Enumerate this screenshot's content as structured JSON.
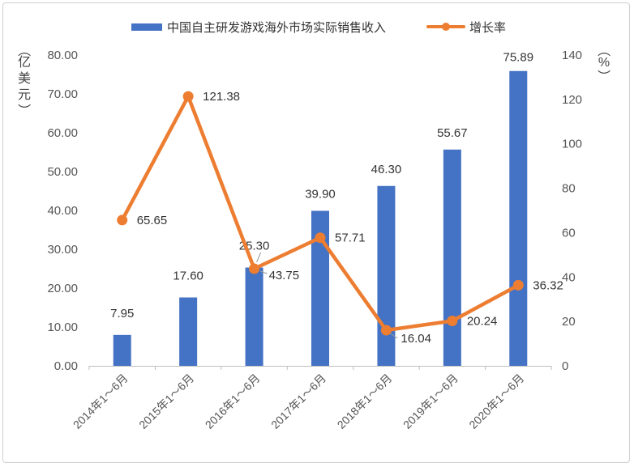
{
  "chart_data": {
    "type": "bar+line",
    "categories": [
      "2014年1～6月",
      "2015年1～6月",
      "2016年1～6月",
      "2017年1～6月",
      "2018年1～6月",
      "2019年1～6月",
      "2020年1～6月"
    ],
    "series": [
      {
        "name": "中国自主研发游戏海外市场实际销售收入",
        "type": "bar",
        "axis": "left",
        "values": [
          7.95,
          17.6,
          25.3,
          39.9,
          46.3,
          55.67,
          75.89
        ],
        "labels": [
          "7.95",
          "17.60",
          "25.30",
          "39.90",
          "46.30",
          "55.67",
          "75.89"
        ],
        "color": "#4472c4"
      },
      {
        "name": "增长率",
        "type": "line",
        "axis": "right",
        "values": [
          65.65,
          121.38,
          43.75,
          57.71,
          16.04,
          20.24,
          36.32
        ],
        "labels": [
          "65.65",
          "121.38",
          "43.75",
          "57.71",
          "16.04",
          "20.24",
          "36.32"
        ],
        "color": "#ed7d31"
      }
    ],
    "y_left": {
      "label_chars": [
        "亿",
        "美",
        "元"
      ],
      "min": 0,
      "max": 80,
      "ticks": [
        "0.00",
        "10.00",
        "20.00",
        "30.00",
        "40.00",
        "50.00",
        "60.00",
        "70.00",
        "80.00"
      ]
    },
    "y_right": {
      "label": "%",
      "min": 0,
      "max": 140,
      "ticks": [
        "0",
        "20",
        "40",
        "60",
        "80",
        "100",
        "120",
        "140"
      ]
    },
    "grid": false,
    "legend": "top-center"
  }
}
